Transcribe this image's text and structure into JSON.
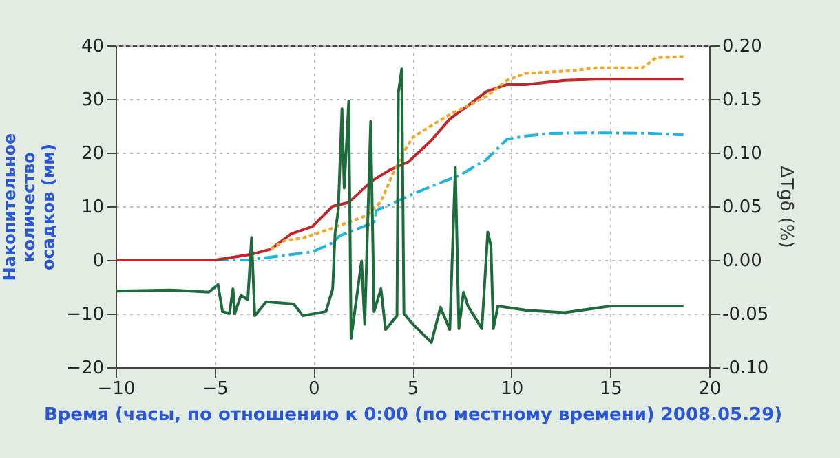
{
  "chart_data": {
    "type": "line",
    "xlabel": "Время (часы, по отношению к 0:00 (по местному времени) 2008.05.29)",
    "ylabel": "Накопительное количество осадков (мм)",
    "y2label": "ΔTgδ (%)",
    "xlim": [
      -10,
      20
    ],
    "xticks": [
      -10,
      -5,
      0,
      5,
      10,
      15,
      20
    ],
    "ylim": [
      -20,
      40
    ],
    "yticks": [
      -20,
      -10,
      0,
      10,
      20,
      30,
      40
    ],
    "y2lim": [
      -0.1,
      0.2
    ],
    "y2ticks": [
      {
        "value": -0.1,
        "label": "-0.10"
      },
      {
        "value": -0.05,
        "label": "-0.05"
      },
      {
        "value": 0,
        "label": "0.00"
      },
      {
        "value": 0.05,
        "label": "0.05"
      },
      {
        "value": 0.1,
        "label": "0.10"
      },
      {
        "value": 0.15,
        "label": "0.15"
      },
      {
        "value": 0.2,
        "label": "0.20"
      }
    ],
    "grid": true,
    "marker": "none",
    "series": [
      {
        "color": "#1e6b3c",
        "axis": "y2",
        "line_style": "solid",
        "x": [
          -10,
          -7.26,
          -5.29,
          -4.83,
          -4.6,
          -4.25,
          -4.07,
          -3.98,
          -3.67,
          -3.32,
          -3.13,
          -2.97,
          -2.39,
          -1.0,
          -0.54,
          0.63,
          0.97,
          1.09,
          1.25,
          1.44,
          1.55,
          1.67,
          1.78,
          1.9,
          2.43,
          2.59,
          2.89,
          3.06,
          3.41,
          3.64,
          4.22,
          4.29,
          4.46,
          4.57,
          5.03,
          5.96,
          6.42,
          6.89,
          7.17,
          7.35,
          7.58,
          7.81,
          8.51,
          8.81,
          8.97,
          9.09,
          9.32,
          10.83,
          12.69,
          15.02,
          18.7
        ],
        "values": [
          -0.029,
          -0.028,
          -0.03,
          -0.023,
          -0.048,
          -0.05,
          -0.027,
          -0.05,
          -0.033,
          -0.037,
          0.021,
          -0.052,
          -0.039,
          -0.041,
          -0.052,
          -0.048,
          -0.027,
          0.025,
          0.046,
          0.141,
          0.067,
          0.108,
          0.148,
          -0.073,
          -0.001,
          -0.06,
          0.129,
          -0.048,
          -0.027,
          -0.065,
          -0.052,
          0.156,
          0.178,
          -0.05,
          -0.06,
          -0.077,
          -0.044,
          -0.065,
          0.086,
          -0.064,
          -0.03,
          -0.043,
          -0.064,
          0.026,
          0.013,
          -0.064,
          -0.043,
          -0.047,
          -0.049,
          -0.043,
          -0.043
        ]
      },
      {
        "color": "#1fb4e0",
        "line_style": "dashed",
        "x": [
          -10,
          -3.3,
          -0.07,
          0.97,
          1.32,
          3.06,
          3.18,
          5.03,
          6.42,
          7.35,
          8.74,
          9.78,
          10.72,
          11.99,
          14.3,
          17.1,
          18.7
        ],
        "values": [
          0,
          0,
          1.5,
          3.2,
          4.5,
          7.0,
          9.2,
          12.3,
          14.4,
          15.7,
          18.7,
          22.5,
          23.1,
          23.6,
          23.7,
          23.6,
          23.3
        ]
      },
      {
        "color": "#c0262a",
        "line_style": "solid",
        "x": [
          -10,
          -4.94,
          -3.09,
          -2.16,
          -1.12,
          -0.07,
          0.97,
          1.78,
          2.94,
          3.87,
          4.8,
          5.96,
          6.89,
          7.82,
          8.74,
          9.78,
          10.72,
          12.69,
          14.3,
          18.7
        ],
        "values": [
          0,
          0,
          1.1,
          2.0,
          4.9,
          6.2,
          10.0,
          10.7,
          14.7,
          16.8,
          18.3,
          22.3,
          26.3,
          28.8,
          31.4,
          32.7,
          32.7,
          33.5,
          33.7,
          33.7
        ]
      },
      {
        "color": "#f5a623",
        "line_style": "dotted",
        "x": [
          -2.16,
          -1.46,
          -0.54,
          0.86,
          2.71,
          3.41,
          3.99,
          4.57,
          5.03,
          5.5,
          6.42,
          6.89,
          8.74,
          9.78,
          10.72,
          12.69,
          14.3,
          16.62,
          17.32,
          18.7
        ],
        "values": [
          2.0,
          3.6,
          4.1,
          5.8,
          8.3,
          10.9,
          15.9,
          20.2,
          22.9,
          24.0,
          26.1,
          27.1,
          30.5,
          33.5,
          34.8,
          35.2,
          35.8,
          35.8,
          37.7,
          37.9
        ]
      }
    ]
  }
}
